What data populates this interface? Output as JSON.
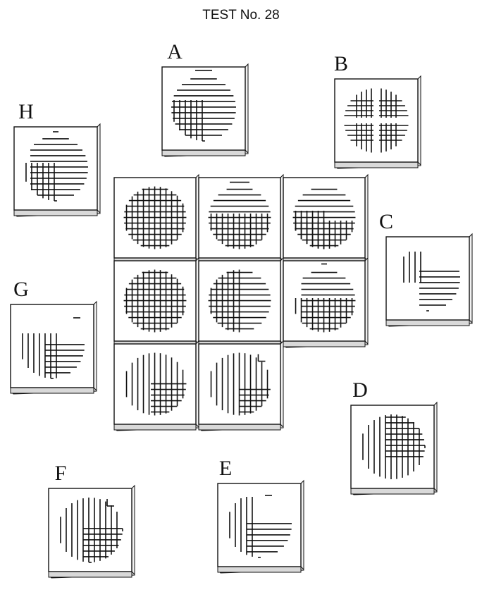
{
  "title": "TEST No. 28",
  "grid": {
    "cells": [
      {
        "id": "r1c1",
        "pattern": "full-grid"
      },
      {
        "id": "r1c2",
        "pattern": "corner-grid"
      },
      {
        "id": "r1c3",
        "pattern": "swirl-grid"
      },
      {
        "id": "r2c1",
        "pattern": "left-grid"
      },
      {
        "id": "r2c2",
        "pattern": "notch-grid"
      },
      {
        "id": "r2c3",
        "pattern": "step-grid"
      },
      {
        "id": "r3c1",
        "pattern": "vertical-swirl"
      },
      {
        "id": "r3c2",
        "pattern": "vertical-corner"
      }
    ]
  },
  "options": [
    {
      "letter": "A",
      "pattern": "corner-hatch"
    },
    {
      "letter": "B",
      "pattern": "cross-hatch"
    },
    {
      "letter": "C",
      "pattern": "hook-hatch"
    },
    {
      "letter": "D",
      "pattern": "vertical-grid"
    },
    {
      "letter": "E",
      "pattern": "l-hatch"
    },
    {
      "letter": "F",
      "pattern": "f-grid"
    },
    {
      "letter": "G",
      "pattern": "g-grid"
    },
    {
      "letter": "H",
      "pattern": "h-grid"
    }
  ]
}
